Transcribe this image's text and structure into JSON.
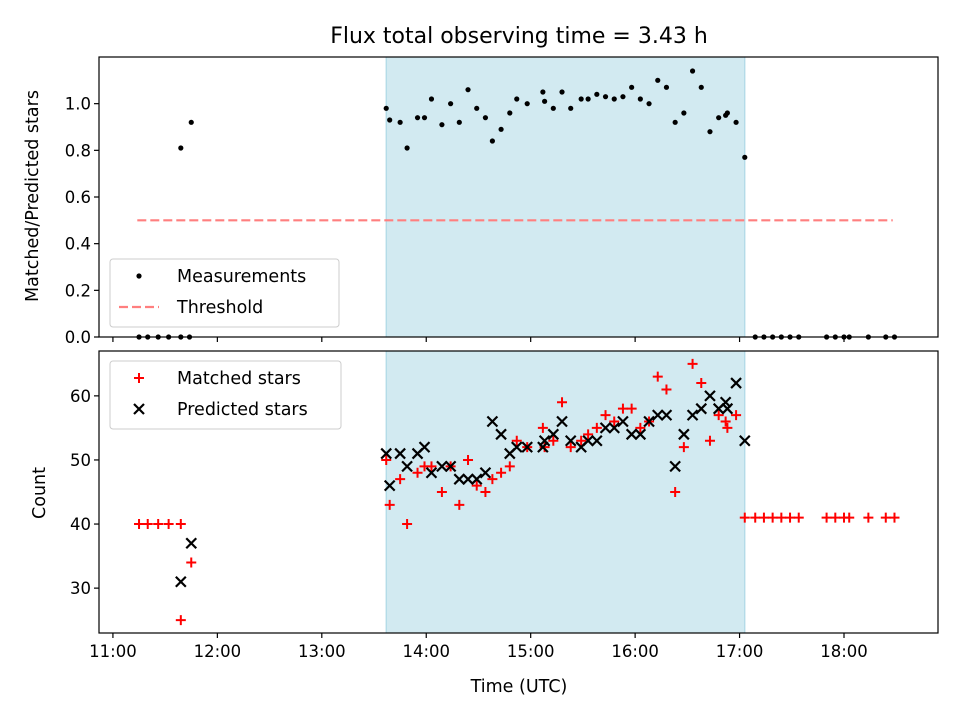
{
  "chart_data": [
    {
      "type": "scatter",
      "title": "Flux total observing time = 3.43 h",
      "ylabel": "Matched/Predicted stars",
      "xlim": [
        "10:52",
        "18:54"
      ],
      "ylim": [
        0,
        1.2
      ],
      "yticks": [
        0.0,
        0.2,
        0.4,
        0.6,
        0.8,
        1.0
      ],
      "ytick_labels": [
        "0.0",
        "0.2",
        "0.4",
        "0.6",
        "0.8",
        "1.0"
      ],
      "highlight_span": [
        "13:37",
        "17:03"
      ],
      "highlight_color": "#add8e6",
      "legend": {
        "placement": "lower-left",
        "entries": [
          "Measurements",
          "Threshold"
        ]
      },
      "threshold": {
        "name": "Threshold",
        "value": 0.5,
        "x": [
          "11:14",
          "18:28"
        ],
        "color": "#ff7f7f"
      },
      "series": [
        {
          "name": "Measurements",
          "color": "#000000",
          "points": [
            [
              "11:15",
              0.0
            ],
            [
              "11:20",
              0.0
            ],
            [
              "11:26",
              0.0
            ],
            [
              "11:32",
              0.0
            ],
            [
              "11:39",
              0.0
            ],
            [
              "11:44",
              0.0
            ],
            [
              "11:39",
              0.81
            ],
            [
              "11:45",
              0.92
            ],
            [
              "13:37",
              0.98
            ],
            [
              "13:39",
              0.93
            ],
            [
              "13:45",
              0.92
            ],
            [
              "13:49",
              0.81
            ],
            [
              "13:55",
              0.94
            ],
            [
              "13:59",
              0.94
            ],
            [
              "14:03",
              1.02
            ],
            [
              "14:09",
              0.91
            ],
            [
              "14:14",
              1.0
            ],
            [
              "14:19",
              0.92
            ],
            [
              "14:24",
              1.06
            ],
            [
              "14:29",
              0.98
            ],
            [
              "14:34",
              0.94
            ],
            [
              "14:38",
              0.84
            ],
            [
              "14:43",
              0.89
            ],
            [
              "14:48",
              0.96
            ],
            [
              "14:52",
              1.02
            ],
            [
              "14:58",
              1.0
            ],
            [
              "15:07",
              1.05
            ],
            [
              "15:08",
              1.01
            ],
            [
              "15:13",
              0.98
            ],
            [
              "15:18",
              1.05
            ],
            [
              "15:23",
              0.98
            ],
            [
              "15:29",
              1.02
            ],
            [
              "15:33",
              1.02
            ],
            [
              "15:38",
              1.04
            ],
            [
              "15:43",
              1.03
            ],
            [
              "15:48",
              1.02
            ],
            [
              "15:53",
              1.03
            ],
            [
              "15:58",
              1.07
            ],
            [
              "16:03",
              1.02
            ],
            [
              "16:08",
              1.0
            ],
            [
              "16:13",
              1.1
            ],
            [
              "16:18",
              1.07
            ],
            [
              "16:23",
              0.92
            ],
            [
              "16:28",
              0.96
            ],
            [
              "16:33",
              1.14
            ],
            [
              "16:38",
              1.07
            ],
            [
              "16:43",
              0.88
            ],
            [
              "16:48",
              0.94
            ],
            [
              "16:52",
              0.95
            ],
            [
              "16:53",
              0.96
            ],
            [
              "16:58",
              0.92
            ],
            [
              "17:03",
              0.77
            ],
            [
              "17:09",
              0.0
            ],
            [
              "17:14",
              0.0
            ],
            [
              "17:19",
              0.0
            ],
            [
              "17:24",
              0.0
            ],
            [
              "17:29",
              0.0
            ],
            [
              "17:34",
              0.0
            ],
            [
              "17:50",
              0.0
            ],
            [
              "17:55",
              0.0
            ],
            [
              "18:00",
              0.0
            ],
            [
              "18:03",
              0.0
            ],
            [
              "18:14",
              0.0
            ],
            [
              "18:24",
              0.0
            ],
            [
              "18:29",
              0.0
            ]
          ]
        }
      ]
    },
    {
      "type": "scatter",
      "xlabel": "Time (UTC)",
      "ylabel": "Count",
      "xlim": [
        "10:52",
        "18:54"
      ],
      "ylim": [
        23,
        67
      ],
      "xticks": [
        "11:00",
        "12:00",
        "13:00",
        "14:00",
        "15:00",
        "16:00",
        "17:00",
        "18:00"
      ],
      "yticks": [
        30,
        40,
        50,
        60
      ],
      "ytick_labels": [
        "30",
        "40",
        "50",
        "60"
      ],
      "highlight_span": [
        "13:37",
        "17:03"
      ],
      "highlight_color": "#add8e6",
      "legend": {
        "placement": "upper-left",
        "entries": [
          "Matched stars",
          "Predicted stars"
        ]
      },
      "series": [
        {
          "name": "Matched stars",
          "marker": "plus",
          "color": "#ff0000",
          "points": [
            [
              "11:15",
              40
            ],
            [
              "11:20",
              40
            ],
            [
              "11:26",
              40
            ],
            [
              "11:32",
              40
            ],
            [
              "11:39",
              40
            ],
            [
              "11:39",
              25
            ],
            [
              "11:45",
              34
            ],
            [
              "13:37",
              50
            ],
            [
              "13:39",
              43
            ],
            [
              "13:45",
              47
            ],
            [
              "13:49",
              40
            ],
            [
              "13:55",
              48
            ],
            [
              "13:59",
              49
            ],
            [
              "14:03",
              49
            ],
            [
              "14:09",
              45
            ],
            [
              "14:14",
              49
            ],
            [
              "14:19",
              43
            ],
            [
              "14:24",
              50
            ],
            [
              "14:29",
              46
            ],
            [
              "14:34",
              45
            ],
            [
              "14:38",
              47
            ],
            [
              "14:43",
              48
            ],
            [
              "14:48",
              49
            ],
            [
              "14:52",
              53
            ],
            [
              "14:58",
              52
            ],
            [
              "15:07",
              55
            ],
            [
              "15:08",
              52
            ],
            [
              "15:13",
              53
            ],
            [
              "15:18",
              59
            ],
            [
              "15:23",
              52
            ],
            [
              "15:29",
              53
            ],
            [
              "15:33",
              54
            ],
            [
              "15:38",
              55
            ],
            [
              "15:43",
              57
            ],
            [
              "15:48",
              56
            ],
            [
              "15:53",
              58
            ],
            [
              "15:58",
              58
            ],
            [
              "16:03",
              55
            ],
            [
              "16:08",
              56
            ],
            [
              "16:13",
              63
            ],
            [
              "16:18",
              61
            ],
            [
              "16:23",
              45
            ],
            [
              "16:28",
              52
            ],
            [
              "16:33",
              65
            ],
            [
              "16:38",
              62
            ],
            [
              "16:43",
              53
            ],
            [
              "16:48",
              57
            ],
            [
              "16:52",
              56
            ],
            [
              "16:53",
              55
            ],
            [
              "16:58",
              57
            ],
            [
              "17:03",
              41
            ],
            [
              "17:09",
              41
            ],
            [
              "17:14",
              41
            ],
            [
              "17:19",
              41
            ],
            [
              "17:24",
              41
            ],
            [
              "17:29",
              41
            ],
            [
              "17:34",
              41
            ],
            [
              "17:50",
              41
            ],
            [
              "17:55",
              41
            ],
            [
              "18:00",
              41
            ],
            [
              "18:03",
              41
            ],
            [
              "18:14",
              41
            ],
            [
              "18:24",
              41
            ],
            [
              "18:29",
              41
            ]
          ]
        },
        {
          "name": "Predicted stars",
          "marker": "x",
          "color": "#000000",
          "points": [
            [
              "11:39",
              31
            ],
            [
              "11:45",
              37
            ],
            [
              "13:37",
              51
            ],
            [
              "13:39",
              46
            ],
            [
              "13:45",
              51
            ],
            [
              "13:49",
              49
            ],
            [
              "13:55",
              51
            ],
            [
              "13:59",
              52
            ],
            [
              "14:03",
              48
            ],
            [
              "14:09",
              49
            ],
            [
              "14:14",
              49
            ],
            [
              "14:19",
              47
            ],
            [
              "14:24",
              47
            ],
            [
              "14:29",
              47
            ],
            [
              "14:34",
              48
            ],
            [
              "14:38",
              56
            ],
            [
              "14:43",
              54
            ],
            [
              "14:48",
              51
            ],
            [
              "14:52",
              52
            ],
            [
              "14:58",
              52
            ],
            [
              "15:07",
              52
            ],
            [
              "15:08",
              53
            ],
            [
              "15:13",
              54
            ],
            [
              "15:18",
              56
            ],
            [
              "15:23",
              53
            ],
            [
              "15:29",
              52
            ],
            [
              "15:33",
              53
            ],
            [
              "15:38",
              53
            ],
            [
              "15:43",
              55
            ],
            [
              "15:48",
              55
            ],
            [
              "15:53",
              56
            ],
            [
              "15:58",
              54
            ],
            [
              "16:03",
              54
            ],
            [
              "16:08",
              56
            ],
            [
              "16:13",
              57
            ],
            [
              "16:18",
              57
            ],
            [
              "16:23",
              49
            ],
            [
              "16:28",
              54
            ],
            [
              "16:33",
              57
            ],
            [
              "16:38",
              58
            ],
            [
              "16:43",
              60
            ],
            [
              "16:48",
              58
            ],
            [
              "16:52",
              59
            ],
            [
              "16:53",
              58
            ],
            [
              "16:58",
              62
            ],
            [
              "17:03",
              53
            ]
          ]
        }
      ]
    }
  ]
}
